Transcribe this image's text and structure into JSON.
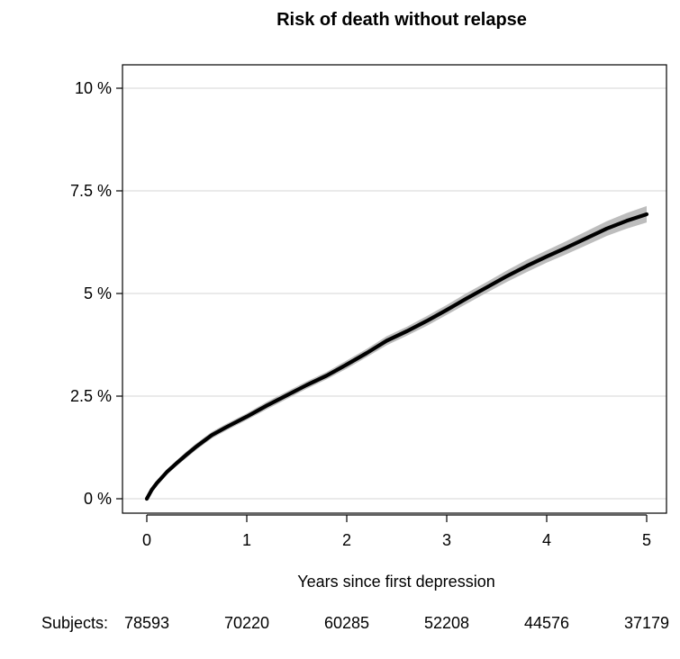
{
  "chart_data": {
    "type": "line",
    "title": "Risk of death without relapse",
    "xlabel": "Years since first depression",
    "ylabel": "",
    "xlim": [
      0,
      5
    ],
    "ylim": [
      0,
      10
    ],
    "x_ticks": [
      0,
      1,
      2,
      3,
      4,
      5
    ],
    "x_tick_labels": [
      "0",
      "1",
      "2",
      "3",
      "4",
      "5"
    ],
    "y_ticks": [
      0,
      2.5,
      5,
      7.5,
      10
    ],
    "y_tick_labels": [
      "0 %",
      "2.5 %",
      "5 %",
      "7.5 %",
      "10 %"
    ],
    "grid": "horizontal",
    "series": [
      {
        "color": "#000000",
        "band_color": "#bdbdbd",
        "x": [
          0,
          0.05,
          0.1,
          0.2,
          0.3,
          0.4,
          0.5,
          0.65,
          0.8,
          1.0,
          1.2,
          1.4,
          1.6,
          1.8,
          2.0,
          2.2,
          2.4,
          2.6,
          2.8,
          3.0,
          3.2,
          3.4,
          3.6,
          3.8,
          4.0,
          4.2,
          4.4,
          4.6,
          4.8,
          5.0
        ],
        "values": [
          0,
          0.22,
          0.38,
          0.65,
          0.87,
          1.08,
          1.28,
          1.55,
          1.75,
          2.0,
          2.27,
          2.52,
          2.77,
          3.0,
          3.27,
          3.55,
          3.85,
          4.08,
          4.33,
          4.6,
          4.88,
          5.15,
          5.42,
          5.67,
          5.9,
          6.12,
          6.35,
          6.58,
          6.77,
          6.93
        ],
        "lower": [
          0,
          0.18,
          0.33,
          0.59,
          0.8,
          1.0,
          1.2,
          1.47,
          1.67,
          1.92,
          2.18,
          2.43,
          2.68,
          2.91,
          3.17,
          3.45,
          3.74,
          3.97,
          4.21,
          4.48,
          4.75,
          5.02,
          5.28,
          5.52,
          5.75,
          5.96,
          6.18,
          6.4,
          6.58,
          6.73
        ],
        "upper": [
          0,
          0.26,
          0.43,
          0.71,
          0.94,
          1.16,
          1.36,
          1.63,
          1.83,
          2.08,
          2.36,
          2.61,
          2.86,
          3.09,
          3.37,
          3.65,
          3.96,
          4.19,
          4.45,
          4.72,
          5.01,
          5.28,
          5.56,
          5.82,
          6.05,
          6.28,
          6.52,
          6.76,
          6.96,
          7.13
        ]
      }
    ],
    "risk_table": {
      "label": "Subjects:",
      "x": [
        0,
        1,
        2,
        3,
        4,
        5
      ],
      "values": [
        "78593",
        "70220",
        "60285",
        "52208",
        "44576",
        "37179"
      ]
    }
  }
}
